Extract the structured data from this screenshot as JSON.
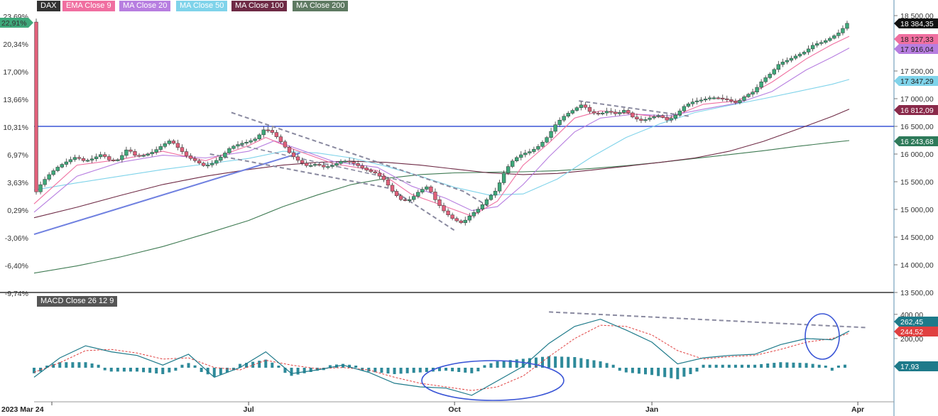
{
  "legend": [
    {
      "label": "DAX",
      "color": "#333333"
    },
    {
      "label": "EMA Close 9",
      "color": "#f06fa0"
    },
    {
      "label": "MA Close 20",
      "color": "#b77ee0"
    },
    {
      "label": "MA Close 50",
      "color": "#7fd3ea"
    },
    {
      "label": "MA Close 100",
      "color": "#6e2a45"
    },
    {
      "label": "MA Close 200",
      "color": "#5e7a62"
    }
  ],
  "macd_label": "MACD Close 26 12 9",
  "colors": {
    "up": "#3ea87a",
    "down": "#e0607a",
    "resistance": "#3a55d6",
    "trendline": "#6f80e0",
    "dashed": "#8a8aa0",
    "macd": "#1e7a8a",
    "signal": "#e04040",
    "hist": "#2e8a9a",
    "ma9": "#f06fa0",
    "ma20": "#b77ee0",
    "ma50": "#7fd3ea",
    "ma100": "#6e2a45",
    "ma200": "#3e7a52"
  },
  "chart_data": {
    "type": "line",
    "x_ticks": [
      "2023 Mar 24",
      "Jul",
      "Oct",
      "Jan",
      "Apr"
    ],
    "left_axis_ticks": [
      "23,69%",
      "20,34%",
      "17,00%",
      "13,66%",
      "10,31%",
      "6,97%",
      "3,63%",
      "0,29%",
      "-3,06%",
      "-6,40%",
      "-9,74%"
    ],
    "left_axis_current": "22,91%",
    "right_axis_ticks": [
      "18 500,00",
      "17 500,00",
      "17 000,00",
      "16 500,00",
      "16 000,00",
      "15 500,00",
      "15 000,00",
      "14 500,00",
      "14 000,00",
      "13 500,00"
    ],
    "ylim": [
      13500,
      18500
    ],
    "series_last": [
      {
        "name": "DAX",
        "value": "18 384,35",
        "color": "#111111"
      },
      {
        "name": "EMA Close 9",
        "value": "18 127,33",
        "color": "#f06fa0"
      },
      {
        "name": "MA Close 20",
        "value": "17 916,04",
        "color": "#b77ee0"
      },
      {
        "name": "MA Close 50",
        "value": "17 347,29",
        "color": "#7fd3ea"
      },
      {
        "name": "MA Close 100",
        "value": "16 812,09",
        "color": "#8a2a4a"
      },
      {
        "name": "MA Close 200",
        "value": "16 243,68",
        "color": "#2e7a5a"
      }
    ],
    "price_path": [
      [
        0,
        15220
      ],
      [
        4,
        15480
      ],
      [
        8,
        15650
      ],
      [
        12,
        15780
      ],
      [
        16,
        15870
      ],
      [
        20,
        15950
      ],
      [
        24,
        15870
      ],
      [
        28,
        15920
      ],
      [
        32,
        16000
      ],
      [
        36,
        15880
      ],
      [
        40,
        15900
      ],
      [
        44,
        16100
      ],
      [
        48,
        15960
      ],
      [
        52,
        15980
      ],
      [
        56,
        16040
      ],
      [
        60,
        16150
      ],
      [
        64,
        16250
      ],
      [
        68,
        16100
      ],
      [
        72,
        15950
      ],
      [
        76,
        15870
      ],
      [
        80,
        15780
      ],
      [
        84,
        15840
      ],
      [
        88,
        15960
      ],
      [
        92,
        16120
      ],
      [
        96,
        16180
      ],
      [
        100,
        16220
      ],
      [
        104,
        16280
      ],
      [
        108,
        16460
      ],
      [
        112,
        16380
      ],
      [
        116,
        16200
      ],
      [
        120,
        16000
      ],
      [
        124,
        15870
      ],
      [
        128,
        15780
      ],
      [
        132,
        15820
      ],
      [
        136,
        15760
      ],
      [
        140,
        15800
      ],
      [
        144,
        15880
      ],
      [
        148,
        15860
      ],
      [
        152,
        15780
      ],
      [
        156,
        15700
      ],
      [
        160,
        15650
      ],
      [
        164,
        15520
      ],
      [
        168,
        15300
      ],
      [
        172,
        15160
      ],
      [
        176,
        15180
      ],
      [
        180,
        15330
      ],
      [
        184,
        15420
      ],
      [
        188,
        15140
      ],
      [
        192,
        14950
      ],
      [
        196,
        14820
      ],
      [
        200,
        14750
      ],
      [
        204,
        14900
      ],
      [
        208,
        15020
      ],
      [
        212,
        15200
      ],
      [
        216,
        15350
      ],
      [
        220,
        15700
      ],
      [
        224,
        15900
      ],
      [
        228,
        16000
      ],
      [
        232,
        16050
      ],
      [
        236,
        16150
      ],
      [
        240,
        16320
      ],
      [
        244,
        16560
      ],
      [
        248,
        16700
      ],
      [
        252,
        16800
      ],
      [
        256,
        16900
      ],
      [
        260,
        16750
      ],
      [
        264,
        16720
      ],
      [
        268,
        16780
      ],
      [
        272,
        16720
      ],
      [
        276,
        16800
      ],
      [
        280,
        16650
      ],
      [
        284,
        16600
      ],
      [
        288,
        16660
      ],
      [
        292,
        16700
      ],
      [
        296,
        16600
      ],
      [
        300,
        16720
      ],
      [
        304,
        16880
      ],
      [
        308,
        16950
      ],
      [
        312,
        16980
      ],
      [
        316,
        17020
      ],
      [
        320,
        17010
      ],
      [
        324,
        16980
      ],
      [
        328,
        16920
      ],
      [
        332,
        17050
      ],
      [
        336,
        17130
      ],
      [
        340,
        17330
      ],
      [
        344,
        17460
      ],
      [
        348,
        17640
      ],
      [
        352,
        17700
      ],
      [
        356,
        17780
      ],
      [
        360,
        17850
      ],
      [
        364,
        17980
      ],
      [
        368,
        18020
      ],
      [
        372,
        18100
      ],
      [
        376,
        18200
      ],
      [
        380,
        18384
      ]
    ],
    "ma9_path": [
      [
        0,
        15100
      ],
      [
        20,
        15800
      ],
      [
        40,
        15900
      ],
      [
        60,
        16050
      ],
      [
        80,
        15880
      ],
      [
        100,
        16150
      ],
      [
        108,
        16300
      ],
      [
        120,
        16100
      ],
      [
        140,
        15820
      ],
      [
        160,
        15700
      ],
      [
        176,
        15270
      ],
      [
        192,
        15050
      ],
      [
        204,
        14880
      ],
      [
        216,
        15150
      ],
      [
        228,
        15800
      ],
      [
        240,
        16200
      ],
      [
        252,
        16650
      ],
      [
        264,
        16780
      ],
      [
        280,
        16720
      ],
      [
        296,
        16650
      ],
      [
        312,
        16900
      ],
      [
        328,
        16960
      ],
      [
        344,
        17300
      ],
      [
        360,
        17720
      ],
      [
        372,
        17980
      ],
      [
        380,
        18127
      ]
    ],
    "ma20_path": [
      [
        0,
        14950
      ],
      [
        20,
        15600
      ],
      [
        40,
        15850
      ],
      [
        60,
        15980
      ],
      [
        80,
        15930
      ],
      [
        100,
        16050
      ],
      [
        112,
        16240
      ],
      [
        124,
        16080
      ],
      [
        140,
        15860
      ],
      [
        160,
        15760
      ],
      [
        176,
        15420
      ],
      [
        192,
        15200
      ],
      [
        204,
        14980
      ],
      [
        216,
        15050
      ],
      [
        228,
        15450
      ],
      [
        240,
        15950
      ],
      [
        252,
        16400
      ],
      [
        264,
        16650
      ],
      [
        280,
        16720
      ],
      [
        296,
        16690
      ],
      [
        312,
        16810
      ],
      [
        328,
        16920
      ],
      [
        344,
        17130
      ],
      [
        360,
        17520
      ],
      [
        372,
        17750
      ],
      [
        380,
        17916
      ]
    ],
    "ma50_path": [
      [
        0,
        15350
      ],
      [
        20,
        15480
      ],
      [
        40,
        15600
      ],
      [
        60,
        15720
      ],
      [
        80,
        15820
      ],
      [
        100,
        15920
      ],
      [
        116,
        16050
      ],
      [
        132,
        16020
      ],
      [
        148,
        15930
      ],
      [
        164,
        15780
      ],
      [
        180,
        15600
      ],
      [
        196,
        15400
      ],
      [
        212,
        15260
      ],
      [
        228,
        15280
      ],
      [
        244,
        15550
      ],
      [
        260,
        15950
      ],
      [
        276,
        16300
      ],
      [
        292,
        16550
      ],
      [
        308,
        16750
      ],
      [
        324,
        16880
      ],
      [
        340,
        17000
      ],
      [
        356,
        17130
      ],
      [
        372,
        17260
      ],
      [
        380,
        17347
      ]
    ],
    "ma100_path": [
      [
        0,
        14850
      ],
      [
        20,
        15040
      ],
      [
        40,
        15250
      ],
      [
        60,
        15450
      ],
      [
        80,
        15600
      ],
      [
        100,
        15720
      ],
      [
        116,
        15800
      ],
      [
        132,
        15850
      ],
      [
        148,
        15870
      ],
      [
        164,
        15850
      ],
      [
        180,
        15800
      ],
      [
        196,
        15730
      ],
      [
        212,
        15660
      ],
      [
        228,
        15630
      ],
      [
        244,
        15650
      ],
      [
        260,
        15710
      ],
      [
        276,
        15780
      ],
      [
        292,
        15850
      ],
      [
        308,
        15930
      ],
      [
        324,
        16050
      ],
      [
        340,
        16230
      ],
      [
        356,
        16450
      ],
      [
        372,
        16680
      ],
      [
        380,
        16812
      ]
    ],
    "ma200_path": [
      [
        0,
        13850
      ],
      [
        20,
        13980
      ],
      [
        40,
        14140
      ],
      [
        60,
        14330
      ],
      [
        80,
        14560
      ],
      [
        100,
        14800
      ],
      [
        116,
        15050
      ],
      [
        132,
        15260
      ],
      [
        148,
        15450
      ],
      [
        164,
        15560
      ],
      [
        180,
        15630
      ],
      [
        196,
        15660
      ],
      [
        212,
        15670
      ],
      [
        228,
        15680
      ],
      [
        244,
        15700
      ],
      [
        260,
        15740
      ],
      [
        276,
        15790
      ],
      [
        292,
        15850
      ],
      [
        308,
        15920
      ],
      [
        324,
        15990
      ],
      [
        340,
        16060
      ],
      [
        356,
        16140
      ],
      [
        372,
        16210
      ],
      [
        380,
        16243
      ]
    ],
    "horizontal_level": 16500,
    "trendline_up": [
      [
        0,
        14550
      ],
      [
        124,
        16020
      ]
    ],
    "channel_upper": [
      [
        92,
        16750
      ],
      [
        200,
        15330
      ],
      [
        212,
        15050
      ]
    ],
    "channel_lower": [
      [
        82,
        16000
      ],
      [
        166,
        15380
      ],
      [
        196,
        14620
      ]
    ],
    "channel_mid": [
      [
        96,
        16160
      ],
      [
        176,
        15480
      ]
    ],
    "consolidation_dashed": [
      [
        254,
        16960
      ],
      [
        306,
        16680
      ]
    ],
    "macd": {
      "right_ticks": [
        "400,00",
        "200,00"
      ],
      "ylim": [
        -300,
        440
      ],
      "values_last": [
        {
          "name": "MACD",
          "value": "262,45",
          "color": "#1e7a8a"
        },
        {
          "name": "Signal",
          "value": "244,52",
          "color": "#e04040"
        },
        {
          "name": "Histogram",
          "value": "17,93",
          "color": "#1e7a8a"
        }
      ],
      "macd_path": [
        [
          0,
          -120
        ],
        [
          12,
          40
        ],
        [
          24,
          140
        ],
        [
          36,
          90
        ],
        [
          48,
          60
        ],
        [
          60,
          -20
        ],
        [
          72,
          70
        ],
        [
          84,
          -120
        ],
        [
          96,
          -40
        ],
        [
          108,
          90
        ],
        [
          120,
          -90
        ],
        [
          132,
          -60
        ],
        [
          144,
          -20
        ],
        [
          156,
          -80
        ],
        [
          168,
          -170
        ],
        [
          180,
          -200
        ],
        [
          192,
          -210
        ],
        [
          204,
          -270
        ],
        [
          216,
          -150
        ],
        [
          228,
          -30
        ],
        [
          240,
          160
        ],
        [
          252,
          300
        ],
        [
          264,
          360
        ],
        [
          276,
          270
        ],
        [
          288,
          170
        ],
        [
          300,
          -10
        ],
        [
          312,
          40
        ],
        [
          324,
          60
        ],
        [
          336,
          70
        ],
        [
          348,
          150
        ],
        [
          360,
          200
        ],
        [
          372,
          190
        ],
        [
          380,
          262
        ]
      ],
      "signal_path": [
        [
          0,
          -80
        ],
        [
          12,
          0
        ],
        [
          24,
          100
        ],
        [
          36,
          110
        ],
        [
          48,
          80
        ],
        [
          60,
          30
        ],
        [
          72,
          40
        ],
        [
          84,
          -40
        ],
        [
          96,
          -60
        ],
        [
          108,
          20
        ],
        [
          120,
          -20
        ],
        [
          132,
          -50
        ],
        [
          144,
          -40
        ],
        [
          156,
          -60
        ],
        [
          168,
          -120
        ],
        [
          180,
          -170
        ],
        [
          192,
          -200
        ],
        [
          204,
          -230
        ],
        [
          216,
          -200
        ],
        [
          228,
          -110
        ],
        [
          240,
          50
        ],
        [
          252,
          200
        ],
        [
          264,
          310
        ],
        [
          276,
          300
        ],
        [
          288,
          230
        ],
        [
          300,
          100
        ],
        [
          312,
          30
        ],
        [
          324,
          50
        ],
        [
          336,
          60
        ],
        [
          348,
          110
        ],
        [
          360,
          170
        ],
        [
          372,
          200
        ],
        [
          380,
          244
        ]
      ],
      "dashed_line": [
        [
          240,
          420
        ],
        [
          388,
          290
        ]
      ]
    }
  }
}
